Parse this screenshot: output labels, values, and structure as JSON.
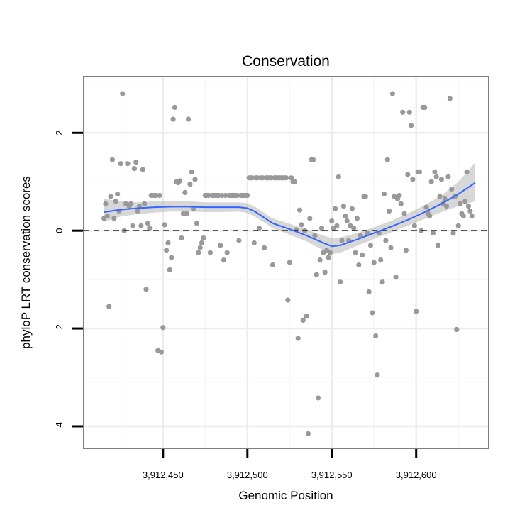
{
  "colors": {
    "point": "#999999",
    "smooth": "#3366ff",
    "ribbon": "#bdbdbd",
    "panel_border": "#7f7f7f",
    "grid": "#ececec"
  },
  "chart_data": {
    "type": "scatter",
    "title": "Conservation",
    "xlabel": "Genomic Position",
    "ylabel": "phyloP LRT conservation scores",
    "xlim": [
      3912403,
      3912643
    ],
    "ylim": [
      -4.45,
      3.15
    ],
    "x_ticks": [
      3912450,
      3912500,
      3912550,
      3912600
    ],
    "x_tick_labels": [
      "3,912,450",
      "3,912,500",
      "3,912,550",
      "3,912,600"
    ],
    "y_ticks": [
      -4,
      -2,
      0,
      2
    ],
    "y_tick_labels": [
      "-4",
      "-2",
      "0",
      "2"
    ],
    "reference_line": {
      "y": 0,
      "style": "dashed"
    },
    "points": [
      [
        3912415,
        0.25
      ],
      [
        3912416,
        0.55
      ],
      [
        3912417,
        0.3
      ],
      [
        3912418,
        -1.55
      ],
      [
        3912419,
        0.7
      ],
      [
        3912420,
        1.45
      ],
      [
        3912421,
        0.25
      ],
      [
        3912422,
        0.6
      ],
      [
        3912423,
        0.75
      ],
      [
        3912424,
        0.4
      ],
      [
        3912425,
        1.37
      ],
      [
        3912426,
        2.8
      ],
      [
        3912427,
        0.0
      ],
      [
        3912428,
        0.55
      ],
      [
        3912429,
        1.37
      ],
      [
        3912430,
        0.5
      ],
      [
        3912431,
        0.55
      ],
      [
        3912432,
        0.1
      ],
      [
        3912433,
        1.27
      ],
      [
        3912434,
        1.4
      ],
      [
        3912435,
        0.4
      ],
      [
        3912436,
        0.5
      ],
      [
        3912437,
        0.1
      ],
      [
        3912438,
        1.25
      ],
      [
        3912439,
        0.55
      ],
      [
        3912440,
        -1.2
      ],
      [
        3912441,
        0.15
      ],
      [
        3912442,
        0.05
      ],
      [
        3912443,
        0.72
      ],
      [
        3912444,
        0.72
      ],
      [
        3912445,
        0.72
      ],
      [
        3912446,
        0.72
      ],
      [
        3912447,
        -2.45
      ],
      [
        3912448,
        0.72
      ],
      [
        3912449,
        -2.48
      ],
      [
        3912450,
        -1.98
      ],
      [
        3912451,
        0.12
      ],
      [
        3912452,
        -0.4
      ],
      [
        3912453,
        -0.25
      ],
      [
        3912454,
        -0.8
      ],
      [
        3912455,
        -0.55
      ],
      [
        3912456,
        2.28
      ],
      [
        3912457,
        2.52
      ],
      [
        3912458,
        1.0
      ],
      [
        3912459,
        0.98
      ],
      [
        3912460,
        1.02
      ],
      [
        3912461,
        -0.15
      ],
      [
        3912462,
        0.35
      ],
      [
        3912463,
        0.78
      ],
      [
        3912464,
        0.35
      ],
      [
        3912465,
        2.28
      ],
      [
        3912466,
        0.95
      ],
      [
        3912467,
        1.2
      ],
      [
        3912468,
        0.45
      ],
      [
        3912469,
        1.05
      ],
      [
        3912470,
        0.15
      ],
      [
        3912471,
        -0.45
      ],
      [
        3912472,
        -0.35
      ],
      [
        3912473,
        -0.25
      ],
      [
        3912474,
        -0.15
      ],
      [
        3912475,
        0.72
      ],
      [
        3912476,
        0.72
      ],
      [
        3912477,
        0.72
      ],
      [
        3912478,
        -0.45
      ],
      [
        3912479,
        0.72
      ],
      [
        3912480,
        0.72
      ],
      [
        3912481,
        0.72
      ],
      [
        3912482,
        0.72
      ],
      [
        3912483,
        0.72
      ],
      [
        3912484,
        -0.3
      ],
      [
        3912485,
        0.72
      ],
      [
        3912486,
        -0.6
      ],
      [
        3912487,
        0.72
      ],
      [
        3912488,
        -0.45
      ],
      [
        3912489,
        0.72
      ],
      [
        3912490,
        0.72
      ],
      [
        3912491,
        0.72
      ],
      [
        3912492,
        0.72
      ],
      [
        3912493,
        0.72
      ],
      [
        3912494,
        0.72
      ],
      [
        3912495,
        -0.2
      ],
      [
        3912496,
        0.72
      ],
      [
        3912497,
        0.72
      ],
      [
        3912498,
        0.72
      ],
      [
        3912499,
        0.72
      ],
      [
        3912500,
        0.72
      ],
      [
        3912501,
        1.08
      ],
      [
        3912502,
        1.08
      ],
      [
        3912503,
        1.08
      ],
      [
        3912504,
        -0.25
      ],
      [
        3912505,
        1.08
      ],
      [
        3912506,
        1.08
      ],
      [
        3912507,
        0.05
      ],
      [
        3912508,
        1.08
      ],
      [
        3912509,
        1.08
      ],
      [
        3912510,
        -0.35
      ],
      [
        3912511,
        1.08
      ],
      [
        3912512,
        1.08
      ],
      [
        3912513,
        1.08
      ],
      [
        3912514,
        1.08
      ],
      [
        3912515,
        -0.7
      ],
      [
        3912516,
        1.08
      ],
      [
        3912517,
        1.08
      ],
      [
        3912518,
        1.08
      ],
      [
        3912519,
        1.08
      ],
      [
        3912520,
        1.08
      ],
      [
        3912521,
        1.08
      ],
      [
        3912522,
        1.08
      ],
      [
        3912523,
        1.08
      ],
      [
        3912524,
        -1.42
      ],
      [
        3912525,
        -0.65
      ],
      [
        3912526,
        1.08
      ],
      [
        3912527,
        1.0
      ],
      [
        3912528,
        1.0
      ],
      [
        3912529,
        0.02
      ],
      [
        3912530,
        -2.2
      ],
      [
        3912531,
        0.42
      ],
      [
        3912532,
        0.12
      ],
      [
        3912533,
        -1.83
      ],
      [
        3912534,
        0.0
      ],
      [
        3912535,
        -1.75
      ],
      [
        3912536,
        -4.15
      ],
      [
        3912537,
        0.25
      ],
      [
        3912538,
        1.45
      ],
      [
        3912539,
        1.45
      ],
      [
        3912540,
        -0.1
      ],
      [
        3912541,
        -0.9
      ],
      [
        3912542,
        -3.42
      ],
      [
        3912543,
        -0.6
      ],
      [
        3912544,
        0.05
      ],
      [
        3912545,
        -0.45
      ],
      [
        3912546,
        -0.85
      ],
      [
        3912547,
        -0.4
      ],
      [
        3912548,
        -0.55
      ],
      [
        3912549,
        -0.45
      ],
      [
        3912550,
        0.2
      ],
      [
        3912551,
        0.05
      ],
      [
        3912552,
        0.45
      ],
      [
        3912553,
        0.1
      ],
      [
        3912554,
        1.1
      ],
      [
        3912555,
        -1.05
      ],
      [
        3912556,
        -0.2
      ],
      [
        3912557,
        0.5
      ],
      [
        3912558,
        0.3
      ],
      [
        3912559,
        0.2
      ],
      [
        3912560,
        -0.2
      ],
      [
        3912561,
        0.1
      ],
      [
        3912562,
        0.45
      ],
      [
        3912563,
        0.05
      ],
      [
        3912564,
        -0.45
      ],
      [
        3912565,
        0.25
      ],
      [
        3912566,
        -0.7
      ],
      [
        3912567,
        -0.1
      ],
      [
        3912568,
        -0.5
      ],
      [
        3912569,
        0.7
      ],
      [
        3912570,
        0.7
      ],
      [
        3912571,
        -0.05
      ],
      [
        3912572,
        -1.25
      ],
      [
        3912573,
        -0.3
      ],
      [
        3912574,
        -1.68
      ],
      [
        3912575,
        -0.65
      ],
      [
        3912576,
        -2.15
      ],
      [
        3912577,
        -2.95
      ],
      [
        3912578,
        -0.05
      ],
      [
        3912579,
        -0.6
      ],
      [
        3912580,
        -1.05
      ],
      [
        3912581,
        0.75
      ],
      [
        3912582,
        -0.2
      ],
      [
        3912583,
        1.45
      ],
      [
        3912584,
        0.4
      ],
      [
        3912585,
        -0.35
      ],
      [
        3912586,
        2.8
      ],
      [
        3912587,
        0.7
      ],
      [
        3912588,
        -0.95
      ],
      [
        3912589,
        0.65
      ],
      [
        3912590,
        0.72
      ],
      [
        3912591,
        0.55
      ],
      [
        3912592,
        2.42
      ],
      [
        3912593,
        0.35
      ],
      [
        3912594,
        -0.4
      ],
      [
        3912595,
        1.15
      ],
      [
        3912596,
        2.42
      ],
      [
        3912597,
        2.15
      ],
      [
        3912598,
        1.05
      ],
      [
        3912599,
        0.1
      ],
      [
        3912600,
        -1.65
      ],
      [
        3912601,
        1.2
      ],
      [
        3912602,
        1.2
      ],
      [
        3912603,
        0.0
      ],
      [
        3912604,
        2.52
      ],
      [
        3912605,
        2.52
      ],
      [
        3912606,
        0.48
      ],
      [
        3912607,
        0.35
      ],
      [
        3912608,
        0.3
      ],
      [
        3912609,
        1.0
      ],
      [
        3912610,
        -0.05
      ],
      [
        3912611,
        1.2
      ],
      [
        3912612,
        1.1
      ],
      [
        3912613,
        -0.3
      ],
      [
        3912614,
        0.7
      ],
      [
        3912615,
        1.05
      ],
      [
        3912616,
        0.55
      ],
      [
        3912617,
        0.65
      ],
      [
        3912618,
        0.5
      ],
      [
        3912619,
        1.1
      ],
      [
        3912620,
        2.7
      ],
      [
        3912621,
        0.85
      ],
      [
        3912622,
        -0.05
      ],
      [
        3912623,
        0.7
      ],
      [
        3912624,
        -2.02
      ],
      [
        3912625,
        0.1
      ],
      [
        3912626,
        0.55
      ],
      [
        3912627,
        0.35
      ],
      [
        3912628,
        0.3
      ],
      [
        3912629,
        0.6
      ],
      [
        3912630,
        1.2
      ],
      [
        3912631,
        0.5
      ],
      [
        3912632,
        0.4
      ],
      [
        3912633,
        0.3
      ]
    ],
    "smooth": {
      "method": "loess",
      "x": [
        3912415,
        3912425,
        3912435,
        3912445,
        3912455,
        3912465,
        3912475,
        3912485,
        3912495,
        3912500,
        3912505,
        3912515,
        3912525,
        3912535,
        3912545,
        3912550,
        3912555,
        3912565,
        3912575,
        3912585,
        3912595,
        3912605,
        3912615,
        3912625,
        3912635
      ],
      "y": [
        0.38,
        0.43,
        0.46,
        0.48,
        0.49,
        0.49,
        0.48,
        0.48,
        0.48,
        0.46,
        0.38,
        0.15,
        0.03,
        -0.1,
        -0.25,
        -0.32,
        -0.3,
        -0.18,
        -0.05,
        0.08,
        0.22,
        0.38,
        0.55,
        0.75,
        0.98
      ],
      "lower": [
        0.18,
        0.29,
        0.34,
        0.37,
        0.39,
        0.39,
        0.38,
        0.38,
        0.39,
        0.36,
        0.28,
        0.05,
        -0.08,
        -0.22,
        -0.4,
        -0.48,
        -0.45,
        -0.31,
        -0.17,
        -0.04,
        0.1,
        0.24,
        0.38,
        0.5,
        0.6
      ],
      "upper": [
        0.65,
        0.6,
        0.58,
        0.6,
        0.6,
        0.6,
        0.58,
        0.58,
        0.58,
        0.56,
        0.48,
        0.25,
        0.14,
        0.02,
        -0.1,
        -0.15,
        -0.14,
        -0.05,
        0.07,
        0.2,
        0.35,
        0.52,
        0.72,
        1.0,
        1.4
      ]
    },
    "grid": true,
    "legend": "none"
  }
}
